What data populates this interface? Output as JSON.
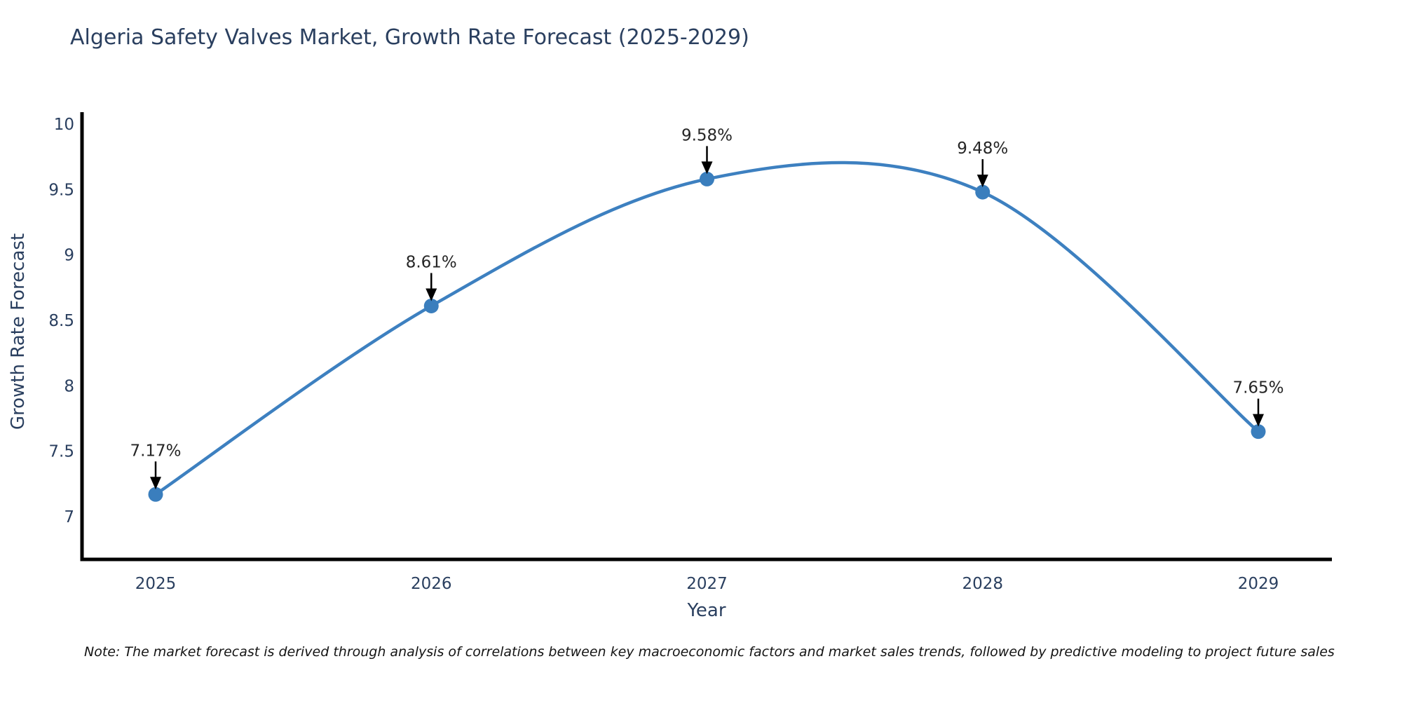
{
  "chart_data": {
    "type": "line",
    "title": "Algeria Safety Valves Market, Growth Rate Forecast (2025-2029)",
    "xlabel": "Year",
    "ylabel": "Growth Rate Forecast",
    "x": [
      "2025",
      "2026",
      "2027",
      "2028",
      "2029"
    ],
    "y": [
      7.17,
      8.61,
      9.58,
      9.48,
      7.65
    ],
    "point_labels": [
      "7.17%",
      "8.61%",
      "9.58%",
      "9.48%",
      "7.65%"
    ],
    "yticks": [
      7,
      7.5,
      8,
      8.5,
      9,
      9.5,
      10
    ],
    "ytick_labels": [
      "7",
      "7.5",
      "8",
      "8.5",
      "9",
      "9.5",
      "10"
    ],
    "ylim": [
      6.66,
      10.1
    ],
    "line_shape": "spline",
    "markers": true,
    "grid": false,
    "legend": "none"
  },
  "note": "Note: The market forecast is derived through analysis of correlations between key macroeconomic factors and market sales trends, followed by predictive modeling to project future sales",
  "colors": {
    "line": "#3d80c0",
    "marker": "#3a7ebd",
    "axis": "#000000",
    "heading_text": "#2a3f5f",
    "tick_text": "#2a3f5f",
    "annotation_text": "#262626",
    "annotation_arrow": "#000000",
    "background": "#ffffff"
  }
}
